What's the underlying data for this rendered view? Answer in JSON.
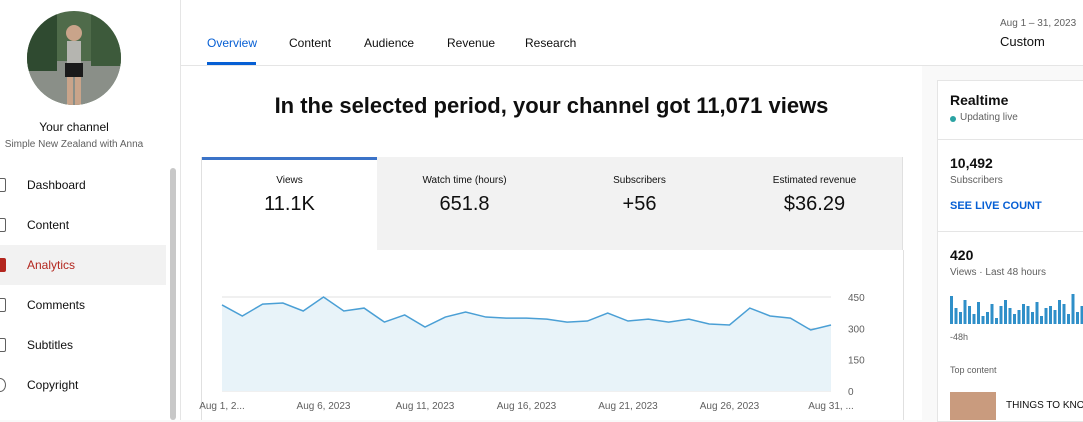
{
  "sidebar": {
    "channel_label": "Your channel",
    "channel_name": "Simple New Zealand with Anna",
    "nav": [
      "Dashboard",
      "Content",
      "Analytics",
      "Comments",
      "Subtitles",
      "Copyright"
    ]
  },
  "tabs": [
    "Overview",
    "Content",
    "Audience",
    "Revenue",
    "Research"
  ],
  "date_range": {
    "range": "Aug 1 – 31, 2023",
    "label": "Custom"
  },
  "headline": "In the selected period, your channel got 11,071 views",
  "metrics": [
    {
      "label": "Views",
      "value": "11.1K"
    },
    {
      "label": "Watch time (hours)",
      "value": "651.8"
    },
    {
      "label": "Subscribers",
      "value": "+56"
    },
    {
      "label": "Estimated revenue",
      "value": "$36.29"
    }
  ],
  "chart_data": {
    "type": "line",
    "color": "#4a9fd5",
    "categories": [
      "Aug 1, 2...",
      null,
      null,
      null,
      null,
      "Aug 6, 2023",
      null,
      null,
      null,
      null,
      "Aug 11, 2023",
      null,
      null,
      null,
      null,
      "Aug 16, 2023",
      null,
      null,
      null,
      null,
      "Aug 21, 2023",
      null,
      null,
      null,
      null,
      "Aug 26, 2023",
      null,
      null,
      null,
      null,
      "Aug 31, ..."
    ],
    "values": [
      412,
      359,
      416,
      421,
      383,
      450,
      383,
      397,
      330,
      364,
      306,
      354,
      378,
      354,
      349,
      349,
      344,
      330,
      335,
      373,
      335,
      344,
      330,
      344,
      321,
      316,
      397,
      359,
      349,
      292,
      316
    ],
    "ylim": [
      0,
      450
    ],
    "yticks": [
      0,
      150,
      300,
      450
    ],
    "grid": true
  },
  "realtime": {
    "title": "Realtime",
    "status": "Updating live",
    "subscribers": "10,492",
    "subscribers_label": "Subscribers",
    "live_link": "SEE LIVE COUNT",
    "views": "420",
    "views_label": "Views · Last 48 hours",
    "axis_label": "-48h",
    "top_content": "Top content",
    "top_item": "THINGS TO KNOW",
    "bars": [
      14,
      8,
      6,
      12,
      9,
      5,
      11,
      4,
      6,
      10,
      3,
      9,
      12,
      8,
      5,
      7,
      10,
      9,
      6,
      11,
      4,
      8,
      9,
      7,
      12,
      10,
      5,
      15,
      6,
      9
    ],
    "bar_color": "#2f8fc8"
  }
}
